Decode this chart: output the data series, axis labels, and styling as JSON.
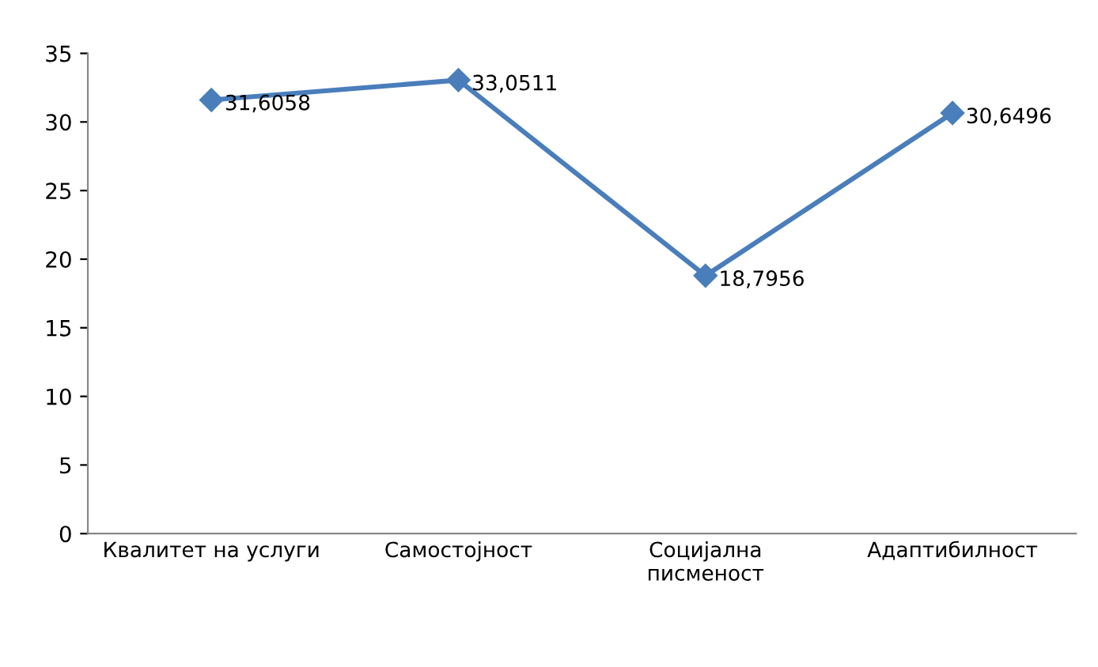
{
  "chart_data": {
    "type": "line",
    "categories": [
      "Квалитет на услуги",
      "Самостојност",
      "Социјална\nписменост",
      "Адаптибилност"
    ],
    "series": [
      {
        "color": "#4a7ebb",
        "values": [
          31.6058,
          33.0511,
          18.7956,
          30.6496
        ],
        "value_labels": [
          "31,6058",
          "33,0511",
          "18,7956",
          "30,6496"
        ]
      }
    ],
    "ylim": [
      0,
      35
    ],
    "yticks": [
      0,
      5,
      10,
      15,
      20,
      25,
      30,
      35
    ],
    "grid": false,
    "marker": "diamond",
    "line_style": "solid"
  }
}
